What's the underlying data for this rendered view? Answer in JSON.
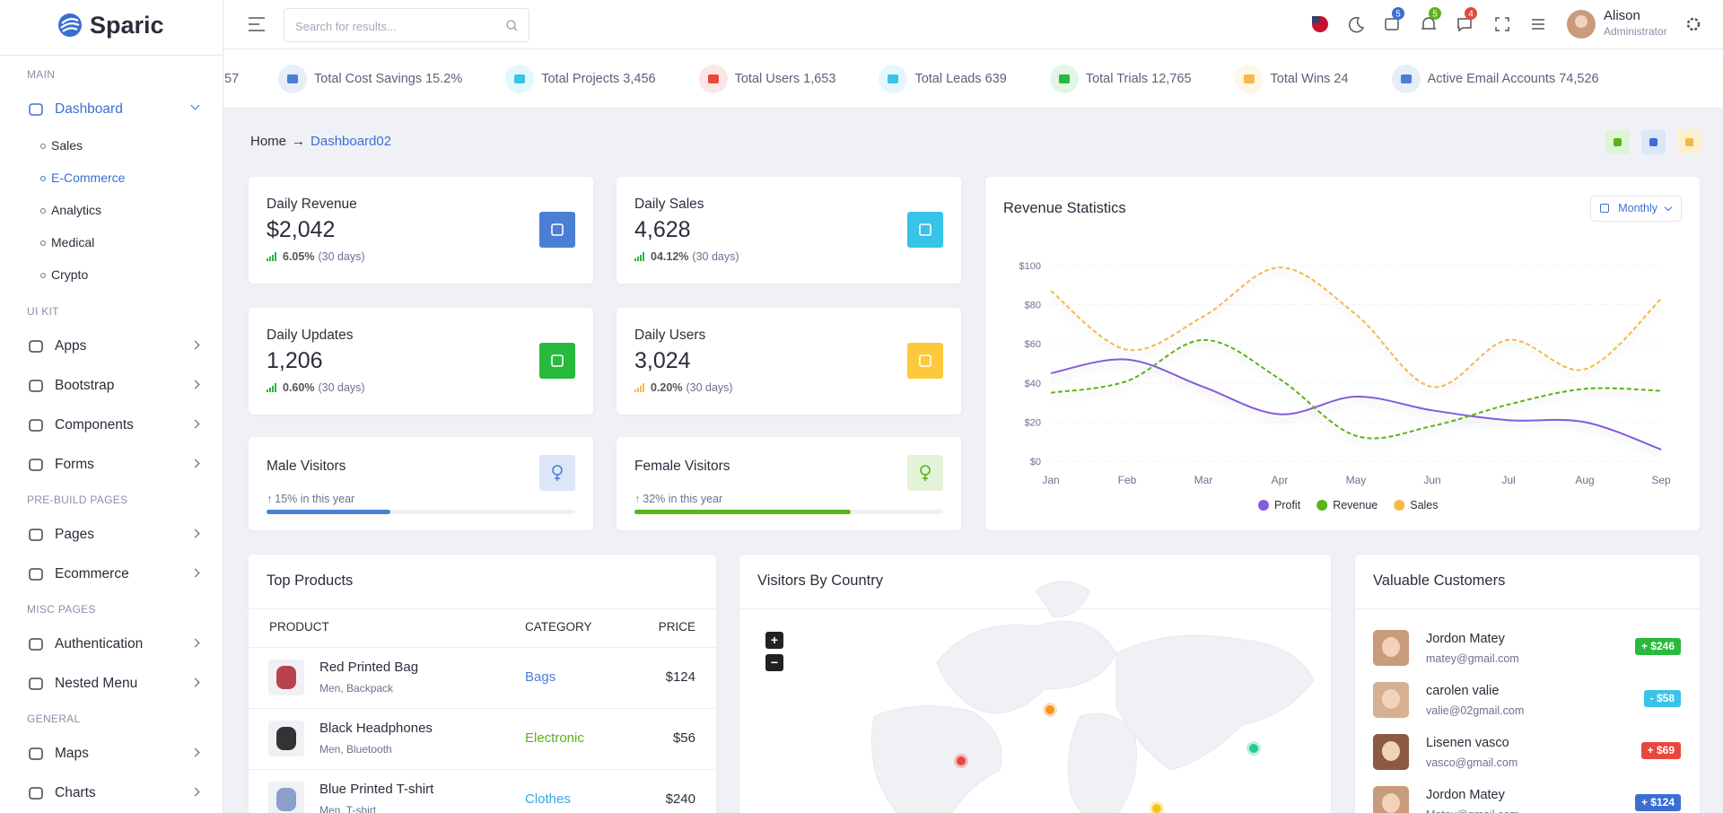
{
  "brand": "Sparic",
  "search_placeholder": "Search for results...",
  "header": {
    "badges": [
      5,
      5,
      4
    ],
    "user": {
      "name": "Alison",
      "role": "Administrator"
    }
  },
  "sidebar": [
    {
      "section": "MAIN",
      "items": [
        {
          "label": "Dashboard",
          "children": [
            "Sales",
            "E-Commerce",
            "Analytics",
            "Medical",
            "Crypto"
          ],
          "active_child": 1
        }
      ]
    },
    {
      "section": "UI KIT",
      "items": [
        {
          "label": "Apps"
        },
        {
          "label": "Bootstrap"
        },
        {
          "label": "Components"
        },
        {
          "label": "Forms"
        }
      ]
    },
    {
      "section": "PRE-BUILD PAGES",
      "items": [
        {
          "label": "Pages"
        },
        {
          "label": "Ecommerce"
        }
      ]
    },
    {
      "section": "MISC PAGES",
      "items": [
        {
          "label": "Authentication"
        },
        {
          "label": "Nested Menu"
        }
      ]
    },
    {
      "section": "GENERAL",
      "items": [
        {
          "label": "Maps"
        },
        {
          "label": "Charts"
        }
      ]
    }
  ],
  "ticker_cut": "57",
  "ticker": [
    {
      "label": "Total Cost Savings 15.2%",
      "color": "#4a7fd4"
    },
    {
      "label": "Total Projects 3,456",
      "color": "#38c3e8"
    },
    {
      "label": "Total Users 1,653",
      "color": "#e8473f"
    },
    {
      "label": "Total Leads 639",
      "color": "#38c3e8"
    },
    {
      "label": "Total Trials 12,765",
      "color": "#28b93d"
    },
    {
      "label": "Total Wins 24",
      "color": "#f5b849"
    },
    {
      "label": "Active Email Accounts 74,526",
      "color": "#4a7fd4"
    }
  ],
  "breadcrumb": [
    "Home",
    "→",
    "Dashboard02"
  ],
  "stats": [
    {
      "title": "Daily Revenue",
      "value": "$2,042",
      "change": "6.05%",
      "period": "(30 days)",
      "color": "#4a7fd4",
      "trend": "#28b93d"
    },
    {
      "title": "Daily Sales",
      "value": "4,628",
      "change": "04.12%",
      "period": "(30 days)",
      "color": "#38c3e8",
      "trend": "#28b93d"
    },
    {
      "title": "Daily Updates",
      "value": "1,206",
      "change": "0.60%",
      "period": "(30 days)",
      "color": "#28b93d",
      "trend": "#28b93d"
    },
    {
      "title": "Daily Users",
      "value": "3,024",
      "change": "0.20%",
      "period": "(30 days)",
      "color": "#fdc93c",
      "trend": "#f5b849"
    }
  ],
  "visitors": [
    {
      "title": "Male Visitors",
      "note": "15% in this year",
      "color": "#4a7fd4",
      "tint": "#dde6f7"
    },
    {
      "title": "Female Visitors",
      "note": "32% in this year",
      "color": "#5bb318",
      "tint": "#e4f3d8"
    }
  ],
  "revenue_chart": {
    "type": "line",
    "title": "Revenue Statistics",
    "filter": "Monthly",
    "categories": [
      "Jan",
      "Feb",
      "Mar",
      "Apr",
      "May",
      "Jun",
      "Jul",
      "Aug",
      "Sep"
    ],
    "series": [
      {
        "name": "Profit",
        "color": "#845adf",
        "dashed": false,
        "values": [
          45,
          52,
          38,
          24,
          33,
          26,
          21,
          20,
          6
        ]
      },
      {
        "name": "Revenue",
        "color": "#5bb318",
        "dashed": true,
        "values": [
          35,
          41,
          62,
          42,
          13,
          18,
          29,
          37,
          36
        ]
      },
      {
        "name": "Sales",
        "color": "#f5b849",
        "dashed": true,
        "values": [
          87,
          57,
          74,
          99,
          75,
          38,
          62,
          47,
          83
        ]
      }
    ],
    "ylim": [
      0,
      100
    ],
    "yticks": [
      {
        "value": 0,
        "label": "$0"
      },
      {
        "value": 20,
        "label": "$20"
      },
      {
        "value": 40,
        "label": "$40"
      },
      {
        "value": 60,
        "label": "$60"
      },
      {
        "value": 80,
        "label": "$80"
      },
      {
        "value": 100,
        "label": "$100"
      }
    ],
    "grid": true
  },
  "top_products": {
    "title": "Top Products",
    "columns": [
      "PRODUCT",
      "CATEGORY",
      "PRICE"
    ],
    "rows": [
      {
        "name": "Red Printed Bag",
        "sub": "Men, Backpack",
        "category": "Bags",
        "price": "$124",
        "color": "#4a7fd4",
        "thumb": "#b8434f"
      },
      {
        "name": "Black Headphones",
        "sub": "Men, Bluetooth",
        "category": "Electronic",
        "price": "$56",
        "color": "#5bb318",
        "thumb": "#333333"
      },
      {
        "name": "Blue Printed T-shirt",
        "sub": "Men, T-shirt",
        "category": "Clothes",
        "price": "$240",
        "color": "#38a6e8",
        "thumb": "#8aa0c8"
      }
    ]
  },
  "visitors_by_country": {
    "title": "Visitors By Country",
    "zoom": [
      "+",
      "−"
    ]
  },
  "valuable_customers": {
    "title": "Valuable Customers",
    "rows": [
      {
        "name": "Jordon Matey",
        "email": "matey@gmail.com",
        "amount": "+ $246",
        "color": "#28b93d",
        "skin": "#c99a7c"
      },
      {
        "name": "carolen valie",
        "email": "valie@02gmail.com",
        "amount": "- $58",
        "color": "#38c3e8",
        "skin": "#d7b092"
      },
      {
        "name": "Lisenen vasco",
        "email": "vasco@gmail.com",
        "amount": "+ $69",
        "color": "#e8473f",
        "skin": "#8a5a44"
      },
      {
        "name": "Jordon Matey",
        "email": "Matey@gmail.com",
        "amount": "+ $124",
        "color": "#3a6fd0",
        "skin": "#c99a7c"
      }
    ]
  }
}
